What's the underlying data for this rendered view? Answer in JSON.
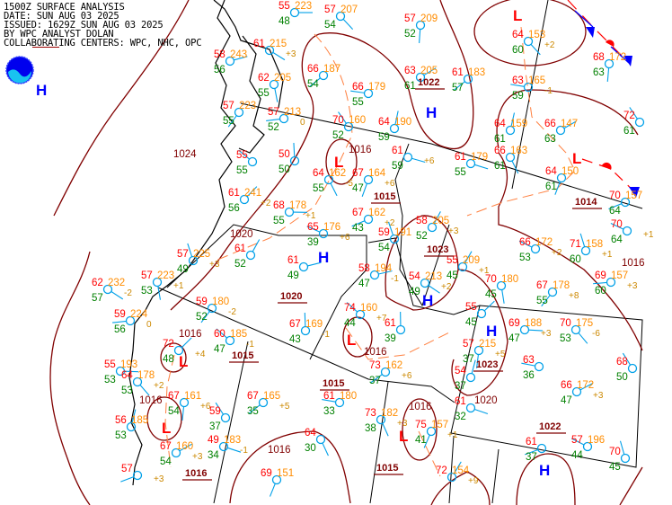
{
  "header": {
    "lines": [
      "1500Z SURFACE ANALYSIS",
      "DATE: SUN AUG 03 2025",
      "ISSUED: 1629Z SUN AUG 03 2025",
      "BY WPC ANALYST DOLAN",
      "COLLABORATING CENTERS: WPC, NHC, OPC"
    ]
  },
  "colors": {
    "temperature": "#ff0000",
    "pressure": "#ff8c00",
    "dewpoint": "#008000",
    "tendency": "#cc8800",
    "isobar": "#800000",
    "station": "#00a0e8",
    "high": "#0000ff",
    "low": "#ff0000",
    "cold_front": "#0000ff",
    "warm_front": "#ff0000",
    "trough": "#ff8040"
  },
  "highs": [
    "H",
    "H",
    "H",
    "H",
    "H",
    "H"
  ],
  "lows": [
    "L",
    "L",
    "L",
    "L",
    "L",
    "L",
    "L"
  ],
  "pressure_centers": [
    "1022",
    "1015",
    "1014",
    "1023",
    "1020",
    "1015",
    "1023",
    "1015",
    "1022",
    "1015",
    "1016"
  ],
  "isobar_labels": [
    "1016",
    "1020",
    "1024",
    "1016",
    "1016",
    "1016",
    "1016",
    "1016",
    "1020",
    "1016"
  ],
  "stations": [
    {
      "t": "55",
      "p": "223",
      "d": "48",
      "tend": ""
    },
    {
      "t": "57",
      "p": "207",
      "d": "54",
      "tend": ""
    },
    {
      "t": "57",
      "p": "209",
      "d": "52",
      "tend": ""
    },
    {
      "t": "66",
      "p": "187",
      "d": "54",
      "tend": ""
    },
    {
      "t": "66",
      "p": "179",
      "d": "55",
      "tend": ""
    },
    {
      "t": "70",
      "p": "160",
      "d": "52",
      "tend": ""
    },
    {
      "t": "64",
      "p": "190",
      "d": "59",
      "tend": ""
    },
    {
      "t": "63",
      "p": "205",
      "d": "61",
      "tend": ""
    },
    {
      "t": "61",
      "p": "",
      "d": "59",
      "tend": "+6"
    },
    {
      "t": "64",
      "p": "162",
      "d": "55",
      "tend": "-5"
    },
    {
      "t": "67",
      "p": "164",
      "d": "47",
      "tend": "+6"
    },
    {
      "t": "67",
      "p": "162",
      "d": "43",
      "tend": "+2"
    },
    {
      "t": "65",
      "p": "176",
      "d": "39",
      "tend": "+6"
    },
    {
      "t": "59",
      "p": "191",
      "d": "54",
      "tend": ""
    },
    {
      "t": "58",
      "p": "205",
      "d": "52",
      "tend": "+3"
    },
    {
      "t": "58",
      "p": "243",
      "d": "56",
      "tend": ""
    },
    {
      "t": "61",
      "p": "215",
      "d": "",
      "tend": "+3"
    },
    {
      "t": "62",
      "p": "205",
      "d": "55",
      "tend": ""
    },
    {
      "t": "57",
      "p": "223",
      "d": "55",
      "tend": ""
    },
    {
      "t": "57",
      "p": "213",
      "d": "52",
      "tend": "0"
    },
    {
      "t": "55",
      "p": "",
      "d": "55",
      "tend": ""
    },
    {
      "t": "50",
      "p": "",
      "d": "50",
      "tend": ""
    },
    {
      "t": "61",
      "p": "241",
      "d": "56",
      "tend": "+2"
    },
    {
      "t": "68",
      "p": "178",
      "d": "55",
      "tend": "+1"
    },
    {
      "t": "64",
      "p": "153",
      "d": "60",
      "tend": "+2"
    },
    {
      "t": "68",
      "p": "172",
      "d": "63",
      "tend": ""
    },
    {
      "t": "61",
      "p": "183",
      "d": "57",
      "tend": ""
    },
    {
      "t": "63",
      "p": "165",
      "d": "59",
      "tend": "-1"
    },
    {
      "t": "72",
      "p": "",
      "d": "61",
      "tend": ""
    },
    {
      "t": "64",
      "p": "159",
      "d": "61",
      "tend": ""
    },
    {
      "t": "66",
      "p": "147",
      "d": "63",
      "tend": ""
    },
    {
      "t": "61",
      "p": "179",
      "d": "55",
      "tend": ""
    },
    {
      "t": "66",
      "p": "163",
      "d": "61",
      "tend": ""
    },
    {
      "t": "64",
      "p": "150",
      "d": "61",
      "tend": ""
    },
    {
      "t": "70",
      "p": "157",
      "d": "64",
      "tend": ""
    },
    {
      "t": "70",
      "p": "",
      "d": "64",
      "tend": "+1"
    },
    {
      "t": "57",
      "p": "225",
      "d": "49",
      "tend": "+3"
    },
    {
      "t": "61",
      "p": "",
      "d": "52",
      "tend": ""
    },
    {
      "t": "61",
      "p": "",
      "d": "49",
      "tend": ""
    },
    {
      "t": "62",
      "p": "232",
      "d": "57",
      "tend": "-2"
    },
    {
      "t": "57",
      "p": "223",
      "d": "53",
      "tend": "+1"
    },
    {
      "t": "59",
      "p": "180",
      "d": "52",
      "tend": "-2"
    },
    {
      "t": "59",
      "p": "224",
      "d": "56",
      "tend": "0"
    },
    {
      "t": "60",
      "p": "185",
      "d": "47",
      "tend": "-1"
    },
    {
      "t": "67",
      "p": "169",
      "d": "43",
      "tend": "-1"
    },
    {
      "t": "72",
      "p": "",
      "d": "48",
      "tend": "+4"
    },
    {
      "t": "55",
      "p": "193",
      "d": "53",
      "tend": ""
    },
    {
      "t": "64",
      "p": "178",
      "d": "53",
      "tend": "+2"
    },
    {
      "t": "67",
      "p": "161",
      "d": "54",
      "tend": "+6"
    },
    {
      "t": "67",
      "p": "165",
      "d": "35",
      "tend": "+5"
    },
    {
      "t": "61",
      "p": "180",
      "d": "33",
      "tend": ""
    },
    {
      "t": "59",
      "p": "",
      "d": "37",
      "tend": ""
    },
    {
      "t": "56",
      "p": "185",
      "d": "53",
      "tend": ""
    },
    {
      "t": "67",
      "p": "160",
      "d": "54",
      "tend": "+3"
    },
    {
      "t": "49",
      "p": "183",
      "d": "34",
      "tend": "-1"
    },
    {
      "t": "64",
      "p": "",
      "d": "30",
      "tend": ""
    },
    {
      "t": "69",
      "p": "151",
      "d": "",
      "tend": ""
    },
    {
      "t": "57",
      "p": "",
      "d": "",
      "tend": "+3"
    },
    {
      "t": "66",
      "p": "172",
      "d": "53",
      "tend": "+2"
    },
    {
      "t": "71",
      "p": "158",
      "d": "60",
      "tend": "+1"
    },
    {
      "t": "55",
      "p": "209",
      "d": "45",
      "tend": "+1"
    },
    {
      "t": "58",
      "p": "194",
      "d": "47",
      "tend": "-1"
    },
    {
      "t": "54",
      "p": "213",
      "d": "49",
      "tend": "+2"
    },
    {
      "t": "70",
      "p": "180",
      "d": "45",
      "tend": ""
    },
    {
      "t": "67",
      "p": "178",
      "d": "55",
      "tend": "+8"
    },
    {
      "t": "69",
      "p": "157",
      "d": "60",
      "tend": "+3"
    },
    {
      "t": "74",
      "p": "160",
      "d": "44",
      "tend": "+7"
    },
    {
      "t": "61",
      "p": "",
      "d": "39",
      "tend": ""
    },
    {
      "t": "55",
      "p": "",
      "d": "45",
      "tend": ""
    },
    {
      "t": "69",
      "p": "188",
      "d": "47",
      "tend": "+3"
    },
    {
      "t": "70",
      "p": "175",
      "d": "53",
      "tend": "-6"
    },
    {
      "t": "57",
      "p": "215",
      "d": "37",
      "tend": "+5"
    },
    {
      "t": "73",
      "p": "162",
      "d": "37",
      "tend": "+6"
    },
    {
      "t": "63",
      "p": "",
      "d": "36",
      "tend": ""
    },
    {
      "t": "68",
      "p": "",
      "d": "50",
      "tend": ""
    },
    {
      "t": "54",
      "p": "",
      "d": "37",
      "tend": ""
    },
    {
      "t": "66",
      "p": "172",
      "d": "47",
      "tend": "+3"
    },
    {
      "t": "61",
      "p": "",
      "d": "32",
      "tend": ""
    },
    {
      "t": "73",
      "p": "182",
      "d": "38",
      "tend": "+3"
    },
    {
      "t": "75",
      "p": "157",
      "d": "41",
      "tend": "+1"
    },
    {
      "t": "61",
      "p": "",
      "d": "37",
      "tend": ""
    },
    {
      "t": "57",
      "p": "196",
      "d": "44",
      "tend": ""
    },
    {
      "t": "70",
      "p": "",
      "d": "45",
      "tend": ""
    },
    {
      "t": "72",
      "p": "154",
      "d": "",
      "tend": "+9"
    }
  ]
}
